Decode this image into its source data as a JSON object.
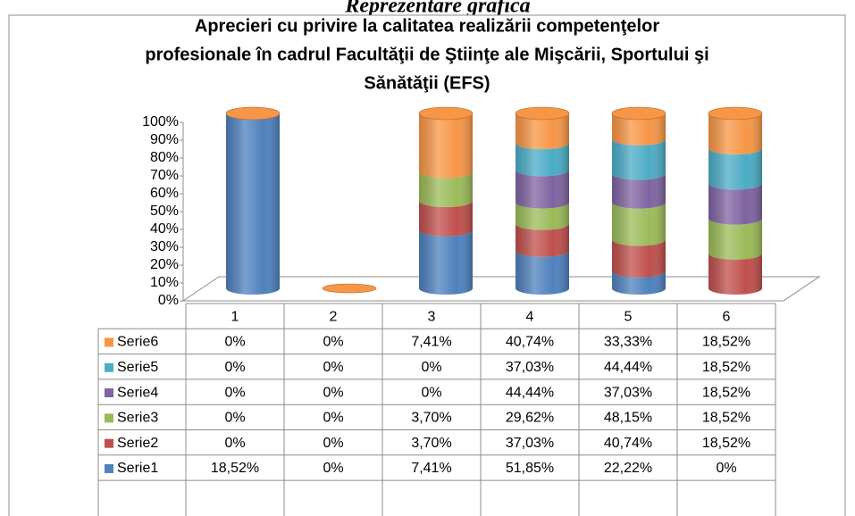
{
  "heading": "Reprezentare grafică",
  "chart_data": {
    "type": "bar",
    "stacked": "percent",
    "title": [
      "Aprecieri cu privire la calitatea realizării competenţelor",
      "profesionale în cadrul Facultăţii de Ştiinţe ale Mişcării, Sportului şi",
      "Sănătăţii (EFS)"
    ],
    "categories": [
      "1",
      "2",
      "3",
      "4",
      "5",
      "6"
    ],
    "series": [
      {
        "name": "Serie1",
        "color": "#4f81bd",
        "values": [
          18.52,
          0,
          7.41,
          51.85,
          22.22,
          0
        ],
        "value_labels": [
          "18,52%",
          "0%",
          "7,41%",
          "51,85%",
          "22,22%",
          "0%"
        ]
      },
      {
        "name": "Serie2",
        "color": "#c0504d",
        "values": [
          0,
          0,
          3.7,
          37.03,
          40.74,
          18.52
        ],
        "value_labels": [
          "0%",
          "0%",
          "3,70%",
          "37,03%",
          "40,74%",
          "18,52%"
        ]
      },
      {
        "name": "Serie3",
        "color": "#9bbb59",
        "values": [
          0,
          0,
          3.7,
          29.62,
          48.15,
          18.52
        ],
        "value_labels": [
          "0%",
          "0%",
          "3,70%",
          "29,62%",
          "48,15%",
          "18,52%"
        ]
      },
      {
        "name": "Serie4",
        "color": "#8064a2",
        "values": [
          0,
          0,
          0,
          44.44,
          37.03,
          18.52
        ],
        "value_labels": [
          "0%",
          "0%",
          "0%",
          "44,44%",
          "37,03%",
          "18,52%"
        ]
      },
      {
        "name": "Serie5",
        "color": "#4bacc6",
        "values": [
          0,
          0,
          0,
          37.03,
          44.44,
          18.52
        ],
        "value_labels": [
          "0%",
          "0%",
          "0%",
          "37,03%",
          "44,44%",
          "18,52%"
        ]
      },
      {
        "name": "Serie6",
        "color": "#f79646",
        "values": [
          0,
          0,
          7.41,
          40.74,
          33.33,
          18.52
        ],
        "value_labels": [
          "0%",
          "0%",
          "7,41%",
          "40,74%",
          "33,33%",
          "18,52%"
        ]
      }
    ],
    "ylim": [
      0,
      100
    ],
    "yticks": [
      {
        "value": 0,
        "label": "0%"
      },
      {
        "value": 10,
        "label": "10%"
      },
      {
        "value": 20,
        "label": "20%"
      },
      {
        "value": 30,
        "label": "30%"
      },
      {
        "value": 40,
        "label": "40%"
      },
      {
        "value": 50,
        "label": "50%"
      },
      {
        "value": 60,
        "label": "60%"
      },
      {
        "value": 70,
        "label": "70%"
      },
      {
        "value": 80,
        "label": "80%"
      },
      {
        "value": 90,
        "label": "90%"
      },
      {
        "value": 100,
        "label": "100%"
      }
    ]
  }
}
